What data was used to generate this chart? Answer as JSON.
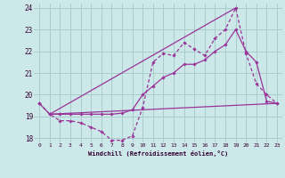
{
  "xlabel": "Windchill (Refroidissement éolien,°C)",
  "background_color": "#cce8e8",
  "grid_color": "#aacccc",
  "line_color": "#993399",
  "xlim": [
    -0.5,
    23.5
  ],
  "ylim": [
    17.8,
    24.2
  ],
  "yticks": [
    18,
    19,
    20,
    21,
    22,
    23,
    24
  ],
  "xticks": [
    0,
    1,
    2,
    3,
    4,
    5,
    6,
    7,
    8,
    9,
    10,
    11,
    12,
    13,
    14,
    15,
    16,
    17,
    18,
    19,
    20,
    21,
    22,
    23
  ],
  "line1_x": [
    0,
    1,
    2,
    3,
    4,
    5,
    6,
    7,
    8,
    9,
    10,
    11,
    12,
    13,
    14,
    15,
    16,
    17,
    18,
    19,
    20,
    21,
    22,
    23
  ],
  "line1_y": [
    19.6,
    19.1,
    18.8,
    18.8,
    18.7,
    18.5,
    18.3,
    17.9,
    17.9,
    18.1,
    19.4,
    21.5,
    21.9,
    21.8,
    22.4,
    22.1,
    21.8,
    22.6,
    23.0,
    24.0,
    21.9,
    20.5,
    20.0,
    19.6
  ],
  "line2_x": [
    0,
    1,
    2,
    3,
    4,
    5,
    6,
    7,
    8,
    9,
    10,
    11,
    12,
    13,
    14,
    15,
    16,
    17,
    18,
    19,
    20,
    21,
    22,
    23
  ],
  "line2_y": [
    19.6,
    19.1,
    19.1,
    19.1,
    19.1,
    19.1,
    19.1,
    19.1,
    19.15,
    19.3,
    20.0,
    20.4,
    20.8,
    21.0,
    21.4,
    21.4,
    21.6,
    22.0,
    22.3,
    23.0,
    22.0,
    21.5,
    19.7,
    19.6
  ],
  "line3_x": [
    1,
    23
  ],
  "line3_y": [
    19.1,
    19.6
  ],
  "line4_x": [
    1,
    19
  ],
  "line4_y": [
    19.1,
    24.0
  ]
}
